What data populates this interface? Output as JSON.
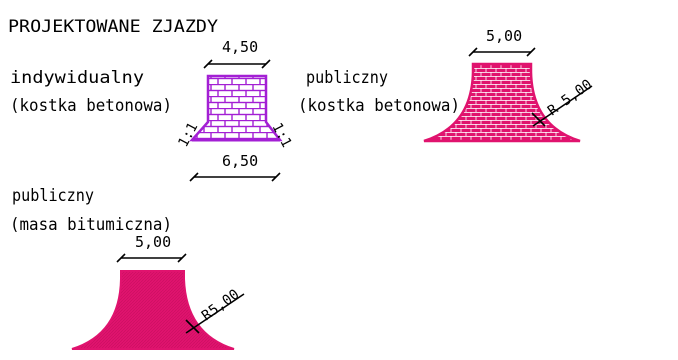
{
  "title": "PROJEKTOWANE ZJAZDY",
  "colors": {
    "individual": "#a31fd4",
    "public": "#e0136e",
    "ink": "#000000"
  },
  "individual": {
    "label_line1": "indywidualny",
    "label_line2": "(kostka betonowa)",
    "top_width": "4,50",
    "bottom_width": "6,50",
    "slope_left": "1:1",
    "slope_right": "1:1"
  },
  "public_paving": {
    "label_line1": "publiczny",
    "label_line2": "(kostka betonowa)",
    "width": "5,00",
    "radius": "R 5,00"
  },
  "public_asphalt": {
    "label_line1": "publiczny",
    "label_line2": "(masa bitumiczna)",
    "width": "5,00",
    "radius": "R5,00"
  }
}
